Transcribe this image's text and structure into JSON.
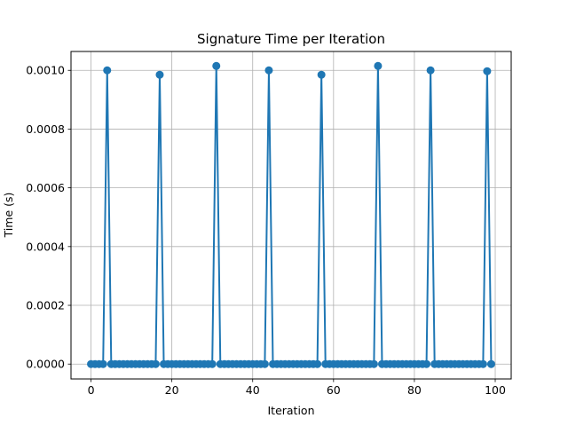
{
  "chart_data": {
    "type": "line",
    "title": "Signature Time per Iteration",
    "xlabel": "Iteration",
    "ylabel": "Time (s)",
    "xlim": [
      -4.95,
      103.95
    ],
    "ylim": [
      -5.07e-05,
      0.0010642
    ],
    "x_ticks": [
      0,
      20,
      40,
      60,
      80,
      100
    ],
    "x_tick_labels": [
      "0",
      "20",
      "40",
      "60",
      "80",
      "100"
    ],
    "y_ticks": [
      0.0,
      0.0002,
      0.0004,
      0.0006,
      0.0008,
      0.001
    ],
    "y_tick_labels": [
      "0.0000",
      "0.0002",
      "0.0004",
      "0.0006",
      "0.0008",
      "0.0010"
    ],
    "grid": true,
    "marker": "circle",
    "series": [
      {
        "color": "#1f77b4",
        "x": [
          0,
          1,
          2,
          3,
          4,
          5,
          6,
          7,
          8,
          9,
          10,
          11,
          12,
          13,
          14,
          15,
          16,
          17,
          18,
          19,
          20,
          21,
          22,
          23,
          24,
          25,
          26,
          27,
          28,
          29,
          30,
          31,
          32,
          33,
          34,
          35,
          36,
          37,
          38,
          39,
          40,
          41,
          42,
          43,
          44,
          45,
          46,
          47,
          48,
          49,
          50,
          51,
          52,
          53,
          54,
          55,
          56,
          57,
          58,
          59,
          60,
          61,
          62,
          63,
          64,
          65,
          66,
          67,
          68,
          69,
          70,
          71,
          72,
          73,
          74,
          75,
          76,
          77,
          78,
          79,
          80,
          81,
          82,
          83,
          84,
          85,
          86,
          87,
          88,
          89,
          90,
          91,
          92,
          93,
          94,
          95,
          96,
          97,
          98,
          99
        ],
        "values": [
          0,
          0,
          0,
          0,
          0.001,
          0,
          0,
          0,
          0,
          0,
          0,
          0,
          0,
          0,
          0,
          0,
          0,
          0.000985,
          0,
          0,
          0,
          0,
          0,
          0,
          0,
          0,
          0,
          0,
          0,
          0,
          0,
          0.001015,
          0,
          0,
          0,
          0,
          0,
          0,
          0,
          0,
          0,
          0,
          0,
          0,
          0.001,
          0,
          0,
          0,
          0,
          0,
          0,
          0,
          0,
          0,
          0,
          0,
          0,
          0.000985,
          0,
          0,
          0,
          0,
          0,
          0,
          0,
          0,
          0,
          0,
          0,
          0,
          0,
          0.001015,
          0,
          0,
          0,
          0,
          0,
          0,
          0,
          0,
          0,
          0,
          0,
          0,
          0.001,
          0,
          0,
          0,
          0,
          0,
          0,
          0,
          0,
          0,
          0,
          0,
          0,
          0,
          0.000997,
          0
        ]
      }
    ]
  }
}
